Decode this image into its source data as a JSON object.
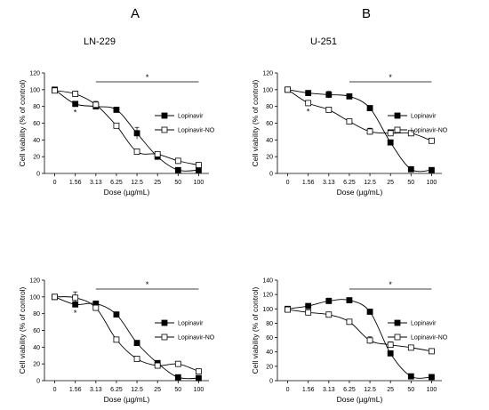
{
  "panel_letters": [
    "A",
    "B"
  ],
  "chart_data": [
    {
      "type": "line",
      "title": "LN-229",
      "xlabel": "Dose (µg/mL)",
      "ylabel": "Cell viability (% of control)",
      "categories": [
        "0",
        "1.56",
        "3.13",
        "6.25",
        "12.5",
        "25",
        "50",
        "100"
      ],
      "ylim": [
        0,
        120
      ],
      "yticks": [
        0,
        20,
        40,
        60,
        80,
        100,
        120
      ],
      "legend_position": "right",
      "significance_bar": {
        "from_index": 2,
        "to_index": 7,
        "label": "*"
      },
      "point_markers": [
        {
          "index": 1,
          "label": "*"
        }
      ],
      "series": [
        {
          "name": "Lopinavir",
          "marker": "filled-square",
          "values": [
            100,
            83,
            80,
            76,
            48,
            20,
            4,
            4
          ],
          "errors": [
            2,
            3,
            2,
            2,
            7,
            2,
            1,
            1
          ]
        },
        {
          "name": "Lopinavir-NO",
          "marker": "open-square",
          "values": [
            99,
            95,
            82,
            57,
            26,
            23,
            15,
            10
          ],
          "errors": [
            2,
            3,
            4,
            3,
            2,
            2,
            2,
            2
          ]
        }
      ]
    },
    {
      "type": "line",
      "title": "U-251",
      "xlabel": "Dose (µg/mL)",
      "ylabel": "Cell viability (% of control)",
      "categories": [
        "0",
        "1.56",
        "3.13",
        "6.25",
        "12.5",
        "25",
        "50",
        "100"
      ],
      "ylim": [
        0,
        120
      ],
      "yticks": [
        0,
        20,
        40,
        60,
        80,
        100,
        120
      ],
      "legend_position": "right",
      "significance_bar": {
        "from_index": 3,
        "to_index": 7,
        "label": "*"
      },
      "point_markers": [
        {
          "index": 1,
          "label": "*"
        }
      ],
      "series": [
        {
          "name": "Lopinavir",
          "marker": "filled-square",
          "values": [
            100,
            96,
            94,
            92,
            78,
            37,
            5,
            4
          ],
          "errors": [
            1,
            2,
            4,
            2,
            2,
            3,
            1,
            1
          ]
        },
        {
          "name": "Lopinavir-NO",
          "marker": "open-square",
          "values": [
            100,
            84,
            76,
            62,
            50,
            48,
            48,
            39
          ],
          "errors": [
            1,
            3,
            2,
            2,
            4,
            2,
            2,
            2
          ]
        }
      ]
    },
    {
      "type": "line",
      "title": "",
      "xlabel": "Dose (µg/mL)",
      "ylabel": "Cell viability (% of control)",
      "categories": [
        "0",
        "1.56",
        "3.13",
        "6.25",
        "12.5",
        "25",
        "50",
        "100"
      ],
      "ylim": [
        0,
        120
      ],
      "yticks": [
        0,
        20,
        40,
        60,
        80,
        100,
        120
      ],
      "legend_position": "right",
      "significance_bar": {
        "from_index": 2,
        "to_index": 7,
        "label": "*"
      },
      "point_markers": [
        {
          "index": 1,
          "label": "*"
        }
      ],
      "series": [
        {
          "name": "Lopinavir",
          "marker": "filled-square",
          "values": [
            100,
            91,
            92,
            79,
            45,
            21,
            4,
            3
          ],
          "errors": [
            2,
            3,
            2,
            2,
            2,
            2,
            1,
            1
          ]
        },
        {
          "name": "Lopinavir-NO",
          "marker": "open-square",
          "values": [
            100,
            99,
            87,
            49,
            26,
            18,
            20,
            11
          ],
          "errors": [
            2,
            7,
            3,
            2,
            2,
            2,
            2,
            2
          ]
        }
      ]
    },
    {
      "type": "line",
      "title": "",
      "xlabel": "Dose (µg/mL)",
      "ylabel": "Cell viability (% of control)",
      "categories": [
        "0",
        "1.56",
        "3.13",
        "6.25",
        "12.5",
        "25",
        "50",
        "100"
      ],
      "ylim": [
        0,
        140
      ],
      "yticks": [
        0,
        20,
        40,
        60,
        80,
        100,
        120,
        140
      ],
      "legend_position": "right",
      "significance_bar": {
        "from_index": 3,
        "to_index": 7,
        "label": "*"
      },
      "point_markers": [],
      "series": [
        {
          "name": "Lopinavir",
          "marker": "filled-square",
          "values": [
            100,
            104,
            111,
            112,
            96,
            38,
            6,
            5
          ],
          "errors": [
            3,
            3,
            4,
            2,
            2,
            3,
            1,
            1
          ]
        },
        {
          "name": "Lopinavir-NO",
          "marker": "open-square",
          "values": [
            99,
            95,
            92,
            82,
            56,
            50,
            46,
            41
          ],
          "errors": [
            3,
            2,
            2,
            2,
            5,
            4,
            2,
            3
          ]
        }
      ]
    }
  ]
}
